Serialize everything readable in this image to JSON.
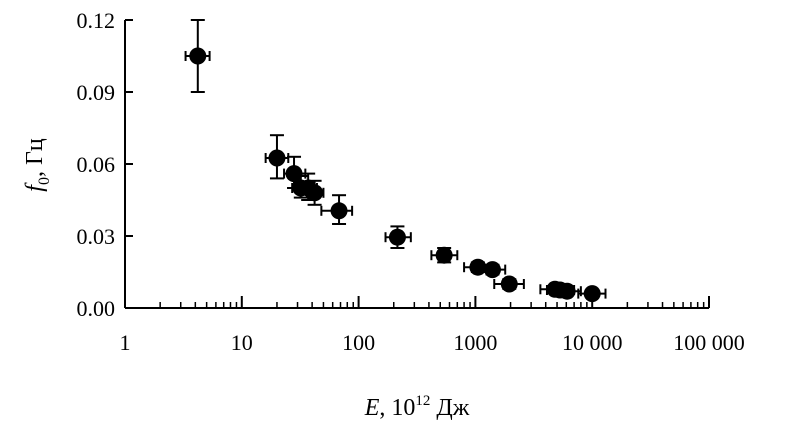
{
  "chart_data": {
    "type": "scatter",
    "x_scale": "log",
    "y_scale": "linear",
    "xlim": [
      1,
      100000
    ],
    "ylim": [
      0,
      0.12
    ],
    "grid": false,
    "xlabel": {
      "var": "E",
      "rest": ", 10",
      "sup": "12",
      "unit": " Дж"
    },
    "ylabel": {
      "var": "f",
      "sub": "0",
      "unit": ", Гц"
    },
    "x_ticks": [
      {
        "value": 1,
        "label": "1"
      },
      {
        "value": 10,
        "label": "10"
      },
      {
        "value": 100,
        "label": "100"
      },
      {
        "value": 1000,
        "label": "1000"
      },
      {
        "value": 10000,
        "label": "10 000"
      },
      {
        "value": 100000,
        "label": "100 000"
      }
    ],
    "y_ticks": [
      {
        "value": 0,
        "label": "0.00"
      },
      {
        "value": 0.03,
        "label": "0.03"
      },
      {
        "value": 0.06,
        "label": "0.06"
      },
      {
        "value": 0.09,
        "label": "0.09"
      },
      {
        "value": 0.12,
        "label": "0.12"
      }
    ],
    "points": [
      {
        "x": 4.2,
        "y": 0.105,
        "x_lo": 3.3,
        "x_hi": 5.3,
        "y_lo": 0.09,
        "y_hi": 0.12
      },
      {
        "x": 20,
        "y": 0.0625,
        "x_lo": 16,
        "x_hi": 25,
        "y_lo": 0.054,
        "y_hi": 0.072
      },
      {
        "x": 28,
        "y": 0.056,
        "x_lo": 23,
        "x_hi": 35,
        "y_lo": 0.05,
        "y_hi": 0.063
      },
      {
        "x": 32,
        "y": 0.05,
        "x_lo": 27,
        "x_hi": 38,
        "y_lo": 0.046,
        "y_hi": 0.055
      },
      {
        "x": 37,
        "y": 0.05,
        "x_lo": 31,
        "x_hi": 44,
        "y_lo": 0.045,
        "y_hi": 0.056
      },
      {
        "x": 42,
        "y": 0.048,
        "x_lo": 36,
        "x_hi": 50,
        "y_lo": 0.043,
        "y_hi": 0.053
      },
      {
        "x": 68,
        "y": 0.0405,
        "x_lo": 48,
        "x_hi": 88,
        "y_lo": 0.035,
        "y_hi": 0.047
      },
      {
        "x": 215,
        "y": 0.0295,
        "x_lo": 170,
        "x_hi": 280,
        "y_lo": 0.025,
        "y_hi": 0.034
      },
      {
        "x": 540,
        "y": 0.022,
        "x_lo": 420,
        "x_hi": 700,
        "y_lo": 0.019,
        "y_hi": 0.025
      },
      {
        "x": 1050,
        "y": 0.017,
        "x_lo": 800,
        "x_hi": 1400,
        "y_lo": 0.015,
        "y_hi": 0.019
      },
      {
        "x": 1400,
        "y": 0.016,
        "x_lo": 1100,
        "x_hi": 1800,
        "y_lo": 0.014,
        "y_hi": 0.018
      },
      {
        "x": 1950,
        "y": 0.01,
        "x_lo": 1450,
        "x_hi": 2600,
        "y_lo": 0.008,
        "y_hi": 0.012
      },
      {
        "x": 4800,
        "y": 0.0078,
        "x_lo": 3600,
        "x_hi": 6200,
        "y_lo": 0.0068,
        "y_hi": 0.0088
      },
      {
        "x": 5300,
        "y": 0.0075,
        "x_lo": 4100,
        "x_hi": 7000,
        "y_lo": 0.0066,
        "y_hi": 0.0085
      },
      {
        "x": 6100,
        "y": 0.007,
        "x_lo": 4600,
        "x_hi": 8000,
        "y_lo": 0.0062,
        "y_hi": 0.0078
      },
      {
        "x": 10000,
        "y": 0.006,
        "x_lo": 7600,
        "x_hi": 13000,
        "y_lo": 0.0052,
        "y_hi": 0.0068
      }
    ]
  }
}
